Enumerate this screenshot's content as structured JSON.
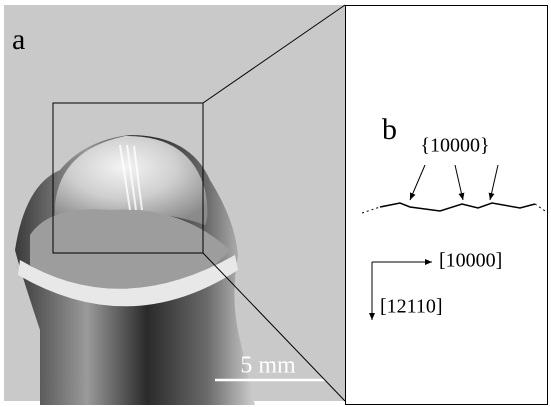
{
  "panel_a": {
    "label": "a",
    "scale_bar": "5 mm"
  },
  "panel_b": {
    "label": "b",
    "facet": "{10000}",
    "axis_x": "[10000]",
    "axis_y": "[12110]"
  }
}
